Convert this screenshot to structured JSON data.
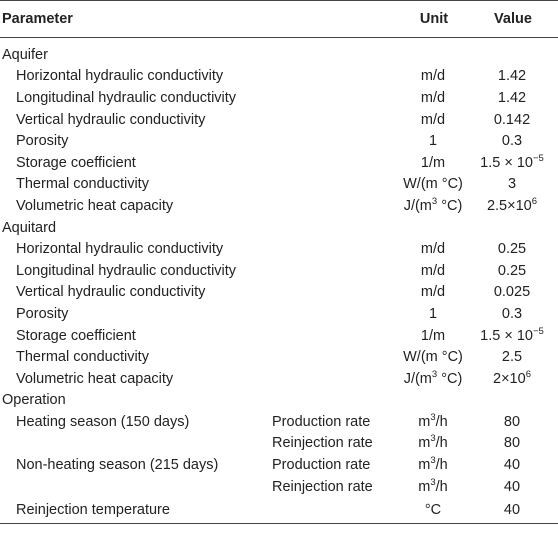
{
  "header": {
    "parameter": "Parameter",
    "unit": "Unit",
    "value": "Value"
  },
  "sections": [
    {
      "title": "Aquifer",
      "rows": [
        {
          "param": "Horizontal hydraulic conductivity",
          "unit": "m/d",
          "value": 1.42
        },
        {
          "param": "Longitudinal hydraulic conductivity",
          "unit": "m/d",
          "value": 1.42
        },
        {
          "param": "Vertical hydraulic conductivity",
          "unit": "m/d",
          "value": 0.142
        },
        {
          "param": "Porosity",
          "unit": 1,
          "value": 0.3
        },
        {
          "param": "Storage coefficient",
          "unit": "1/m",
          "value": {
            "base": "1.5 × 10",
            "sup": "−5"
          }
        },
        {
          "param": "Thermal conductivity",
          "unit": "W/(m °C)",
          "value": 3
        },
        {
          "param": "Volumetric heat capacity",
          "unit": {
            "base": "J/(m",
            "sup": "3",
            "tail": " °C)"
          },
          "value": {
            "base": "2.5×10",
            "sup": "6"
          }
        }
      ]
    },
    {
      "title": "Aquitard",
      "rows": [
        {
          "param": "Horizontal hydraulic conductivity",
          "unit": "m/d",
          "value": 0.25
        },
        {
          "param": "Longitudinal hydraulic conductivity",
          "unit": "m/d",
          "value": 0.25
        },
        {
          "param": "Vertical hydraulic conductivity",
          "unit": "m/d",
          "value": 0.025
        },
        {
          "param": "Porosity",
          "unit": 1,
          "value": 0.3
        },
        {
          "param": "Storage coefficient",
          "unit": "1/m",
          "value": {
            "base": "1.5 × 10",
            "sup": "−5"
          }
        },
        {
          "param": "Thermal conductivity",
          "unit": "W/(m °C)",
          "value": 2.5
        },
        {
          "param": "Volumetric heat capacity",
          "unit": {
            "base": "J/(m",
            "sup": "3",
            "tail": " °C)"
          },
          "value": {
            "base": "2×10",
            "sup": "6"
          }
        }
      ]
    },
    {
      "title": "Operation",
      "rows": [
        {
          "param": "Heating season (150 days)",
          "sub": "Production rate",
          "unit": {
            "base": "m",
            "sup": "3",
            "tail": "/h"
          },
          "value": 80
        },
        {
          "sub": "Reinjection rate",
          "unit": {
            "base": "m",
            "sup": "3",
            "tail": "/h"
          },
          "value": 80
        },
        {
          "param": "Non-heating season (215 days)",
          "sub": "Production rate",
          "unit": {
            "base": "m",
            "sup": "3",
            "tail": "/h"
          },
          "value": 40
        },
        {
          "sub": "Reinjection rate",
          "unit": {
            "base": "m",
            "sup": "3",
            "tail": "/h"
          },
          "value": 40
        },
        {
          "param": "Reinjection temperature",
          "unit": "°C",
          "value": 40
        }
      ]
    }
  ]
}
